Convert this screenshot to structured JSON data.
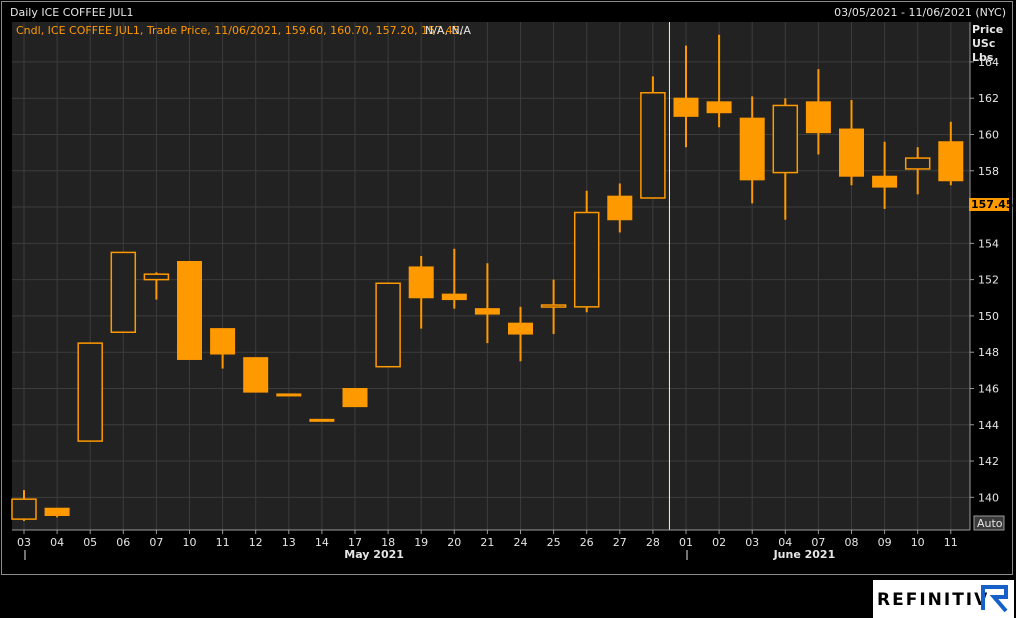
{
  "header": {
    "title": "Daily ICE COFFEE JUL1",
    "date_range": "03/05/2021 - 11/06/2021 (NYC)"
  },
  "legend": {
    "text": "Cndl, ICE COFFEE JUL1, Trade Price, 11/06/2021, 159.60, 160.70, 157.20, 157.45,",
    "na_text": "N/A, N/A"
  },
  "axis": {
    "unit_lines": [
      "Price",
      "USc",
      "Lbs"
    ],
    "auto_label": "Auto",
    "last_price_label": "157.45"
  },
  "brand": {
    "name": "REFINITIV"
  },
  "colors": {
    "candle": "#ff9900",
    "background": "#222222",
    "grid": "#3c3c3c",
    "separator": "#ffff80",
    "axis_text": "#e6e6e6"
  },
  "chart_data": {
    "type": "candlestick",
    "title": "Daily ICE COFFEE JUL1",
    "ylabel": "Price USc Lbs",
    "ylim": [
      138.2,
      166.2
    ],
    "yticks": [
      140,
      142,
      144,
      146,
      148,
      150,
      152,
      154,
      156,
      158,
      160,
      162,
      164
    ],
    "grid": true,
    "month_labels": [
      "May 2021",
      "June 2021"
    ],
    "candles": [
      {
        "date": "03",
        "open": 138.8,
        "high": 140.4,
        "low": 138.7,
        "close": 139.9
      },
      {
        "date": "04",
        "open": 139.4,
        "high": 139.4,
        "low": 138.9,
        "close": 139.0
      },
      {
        "date": "05",
        "open": 143.1,
        "high": 148.5,
        "low": 143.1,
        "close": 148.5
      },
      {
        "date": "06",
        "open": 149.1,
        "high": 153.5,
        "low": 149.1,
        "close": 153.5
      },
      {
        "date": "07",
        "open": 152.0,
        "high": 152.4,
        "low": 150.9,
        "close": 152.3
      },
      {
        "date": "10",
        "open": 153.0,
        "high": 153.0,
        "low": 147.6,
        "close": 147.6
      },
      {
        "date": "11",
        "open": 149.3,
        "high": 149.3,
        "low": 147.1,
        "close": 147.9
      },
      {
        "date": "12",
        "open": 147.7,
        "high": 147.7,
        "low": 145.8,
        "close": 145.8
      },
      {
        "date": "13",
        "open": 145.7,
        "high": 145.7,
        "low": 145.7,
        "close": 145.6
      },
      {
        "date": "14",
        "open": 144.3,
        "high": 144.3,
        "low": 144.2,
        "close": 144.2
      },
      {
        "date": "17",
        "open": 146.0,
        "high": 146.0,
        "low": 145.0,
        "close": 145.0
      },
      {
        "date": "18",
        "open": 147.2,
        "high": 151.8,
        "low": 147.2,
        "close": 151.8
      },
      {
        "date": "19",
        "open": 152.7,
        "high": 153.3,
        "low": 149.3,
        "close": 151.0
      },
      {
        "date": "20",
        "open": 151.2,
        "high": 153.7,
        "low": 150.4,
        "close": 150.9
      },
      {
        "date": "21",
        "open": 150.4,
        "high": 152.9,
        "low": 148.5,
        "close": 150.1
      },
      {
        "date": "24",
        "open": 149.6,
        "high": 150.5,
        "low": 147.5,
        "close": 149.0
      },
      {
        "date": "25",
        "open": 150.5,
        "high": 152.0,
        "low": 149.0,
        "close": 150.6
      },
      {
        "date": "26",
        "open": 150.5,
        "high": 156.9,
        "low": 150.2,
        "close": 155.7
      },
      {
        "date": "27",
        "open": 156.6,
        "high": 157.3,
        "low": 154.6,
        "close": 155.3
      },
      {
        "date": "28",
        "open": 156.5,
        "high": 163.2,
        "low": 156.5,
        "close": 162.3
      },
      {
        "date": "01",
        "open": 162.0,
        "high": 164.9,
        "low": 159.3,
        "close": 161.0
      },
      {
        "date": "02",
        "open": 161.8,
        "high": 165.5,
        "low": 160.4,
        "close": 161.2
      },
      {
        "date": "03",
        "open": 160.9,
        "high": 162.1,
        "low": 156.2,
        "close": 157.5
      },
      {
        "date": "04",
        "open": 157.9,
        "high": 162.0,
        "low": 155.3,
        "close": 161.6
      },
      {
        "date": "07",
        "open": 161.8,
        "high": 163.6,
        "low": 158.9,
        "close": 160.1
      },
      {
        "date": "08",
        "open": 160.3,
        "high": 161.9,
        "low": 157.2,
        "close": 157.7
      },
      {
        "date": "09",
        "open": 157.7,
        "high": 159.6,
        "low": 155.9,
        "close": 157.1
      },
      {
        "date": "10",
        "open": 158.1,
        "high": 159.3,
        "low": 156.7,
        "close": 158.7
      },
      {
        "date": "11",
        "open": 159.6,
        "high": 160.7,
        "low": 157.2,
        "close": 157.45
      }
    ]
  }
}
